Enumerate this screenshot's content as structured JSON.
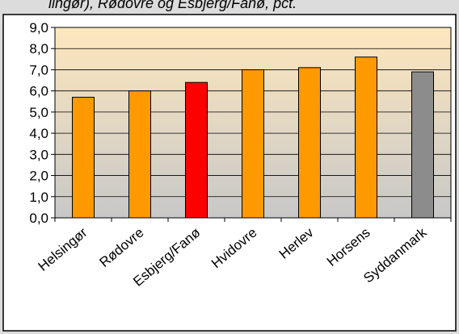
{
  "header": {
    "title_fragment": "lingør), Rødovre og Esbjerg/Fanø, pct."
  },
  "colors": {
    "background": "#dcdcdc",
    "plot_top": "#fde7bd",
    "plot_bottom": "#c8c8c8",
    "bar_default": "#ff9900",
    "bar_highlight": "#ff0000",
    "bar_reference": "#8c8c8c",
    "bar_stroke": "#000000"
  },
  "chart_data": {
    "type": "bar",
    "title": "",
    "xlabel": "",
    "ylabel": "",
    "categories": [
      "Helsingør",
      "Rødovre",
      "Esbjerg/Fanø",
      "Hvidovre",
      "Herlev",
      "Horsens",
      "Syddanmark"
    ],
    "values": [
      5.7,
      6.0,
      6.4,
      7.0,
      7.1,
      7.6,
      6.9
    ],
    "bar_colors": [
      "#ff9900",
      "#ff9900",
      "#ff0000",
      "#ff9900",
      "#ff9900",
      "#ff9900",
      "#8c8c8c"
    ],
    "ylim": [
      0,
      9
    ],
    "yticks": [
      "0,0",
      "1,0",
      "2,0",
      "3,0",
      "4,0",
      "5,0",
      "6,0",
      "7,0",
      "8,0",
      "9,0"
    ],
    "grid": true,
    "legend": "none"
  }
}
